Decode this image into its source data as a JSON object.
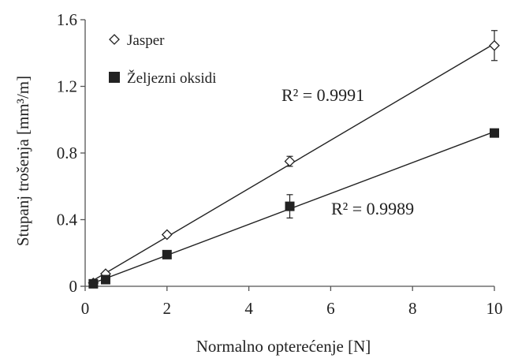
{
  "chart_data": {
    "type": "scatter",
    "title": "",
    "xlabel": "Normalno opterećenje [N]",
    "ylabel": "Stupanj trošenja [mm³/m]",
    "xlim": [
      0,
      10
    ],
    "ylim": [
      0,
      1.6
    ],
    "xticks": [
      0,
      2,
      4,
      6,
      8,
      10
    ],
    "yticks": [
      0,
      0.4,
      0.8,
      1.2,
      1.6
    ],
    "xtick_labels": [
      "0",
      "2",
      "4",
      "6",
      "8",
      "10"
    ],
    "ytick_labels": [
      "0",
      "0.4",
      "0.8",
      "1.2",
      "1.6"
    ],
    "grid": false,
    "legend_position": "top-left",
    "series": [
      {
        "name": "Jasper",
        "marker": "open-diamond",
        "color": "#222222",
        "x": [
          0.2,
          0.5,
          2,
          5,
          10
        ],
        "y": [
          0.02,
          0.075,
          0.31,
          0.75,
          1.445
        ],
        "yerr": [
          0.01,
          0.01,
          0.01,
          0.03,
          0.09
        ],
        "trendline": {
          "type": "linear",
          "r2_label": "R² = 0.9991"
        }
      },
      {
        "name": "Željezni oksidi",
        "marker": "filled-square",
        "color": "#222222",
        "x": [
          0.2,
          0.5,
          2,
          5,
          10
        ],
        "y": [
          0.015,
          0.04,
          0.19,
          0.48,
          0.92
        ],
        "yerr": [
          0.01,
          0.01,
          0.01,
          0.07,
          0.01
        ],
        "trendline": {
          "type": "linear",
          "r2_label": "R² = 0.9989"
        }
      }
    ]
  }
}
